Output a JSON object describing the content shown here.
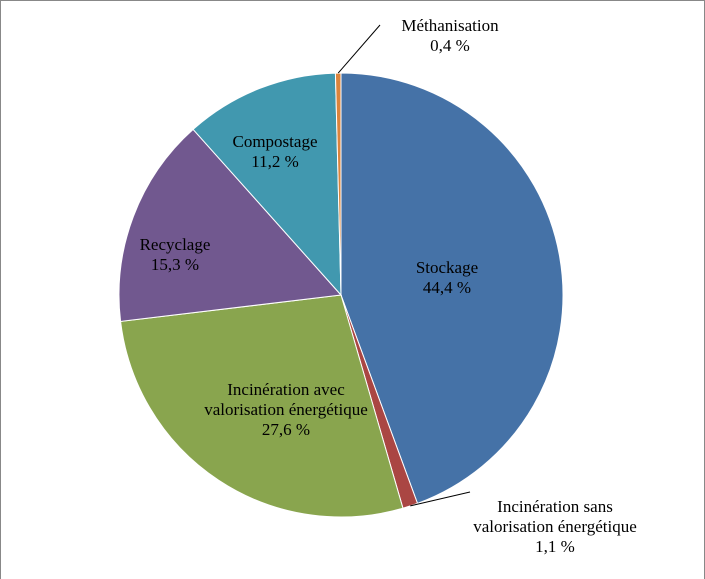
{
  "chart_data": {
    "type": "pie",
    "categories": [
      "Stockage",
      "Incinération sans valorisation énergétique",
      "Incinération avec valorisation énergétique",
      "Recyclage",
      "Compostage",
      "Méthanisation"
    ],
    "values": [
      44.4,
      1.1,
      27.6,
      15.3,
      11.2,
      0.4
    ],
    "value_labels": [
      "44,4 %",
      "1,1 %",
      "27,6 %",
      "15,3 %",
      "11,2 %",
      "0,4 %"
    ],
    "colors": [
      "#4572a7",
      "#aa4643",
      "#89a54e",
      "#71588f",
      "#4198af",
      "#db843d"
    ]
  }
}
